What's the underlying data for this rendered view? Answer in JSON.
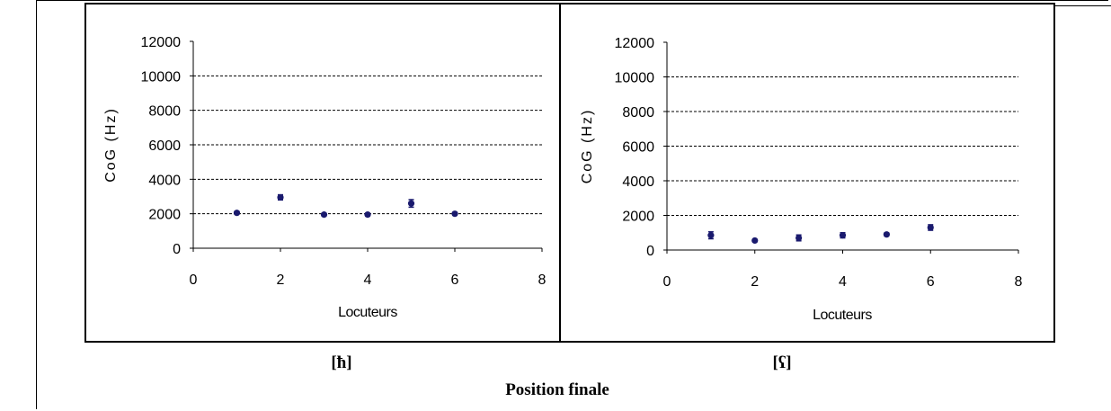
{
  "caption_left": "[ħ]",
  "caption_right": "[ʕ]",
  "footer": "Position finale",
  "colors": {
    "marker": "#1a1a6e",
    "grid": "#000000",
    "axis": "#000000"
  },
  "chart_data": [
    {
      "type": "scatter",
      "title": "",
      "xlabel": "Locuteurs",
      "ylabel": "CoG (Hz)",
      "xlim": [
        0,
        8
      ],
      "ylim": [
        0,
        12000
      ],
      "xticks": [
        0,
        2,
        4,
        6,
        8
      ],
      "yticks": [
        0,
        2000,
        4000,
        6000,
        8000,
        10000,
        12000
      ],
      "grid": "horizontal dashed",
      "series": [
        {
          "x": [
            1,
            2,
            3,
            4,
            5,
            6
          ],
          "y": [
            2050,
            2950,
            1950,
            1950,
            2600,
            2000
          ],
          "err": [
            80,
            150,
            80,
            80,
            220,
            80
          ]
        }
      ]
    },
    {
      "type": "scatter",
      "title": "",
      "xlabel": "Locuteurs",
      "ylabel": "CoG (Hz)",
      "xlim": [
        0,
        8
      ],
      "ylim": [
        0,
        12000
      ],
      "xticks": [
        0,
        2,
        4,
        6,
        8
      ],
      "yticks": [
        0,
        2000,
        4000,
        6000,
        8000,
        10000,
        12000
      ],
      "grid": "horizontal dashed",
      "series": [
        {
          "x": [
            1,
            2,
            3,
            4,
            5,
            6
          ],
          "y": [
            850,
            550,
            700,
            850,
            900,
            1300
          ],
          "err": [
            200,
            60,
            170,
            150,
            80,
            160
          ]
        }
      ]
    }
  ]
}
